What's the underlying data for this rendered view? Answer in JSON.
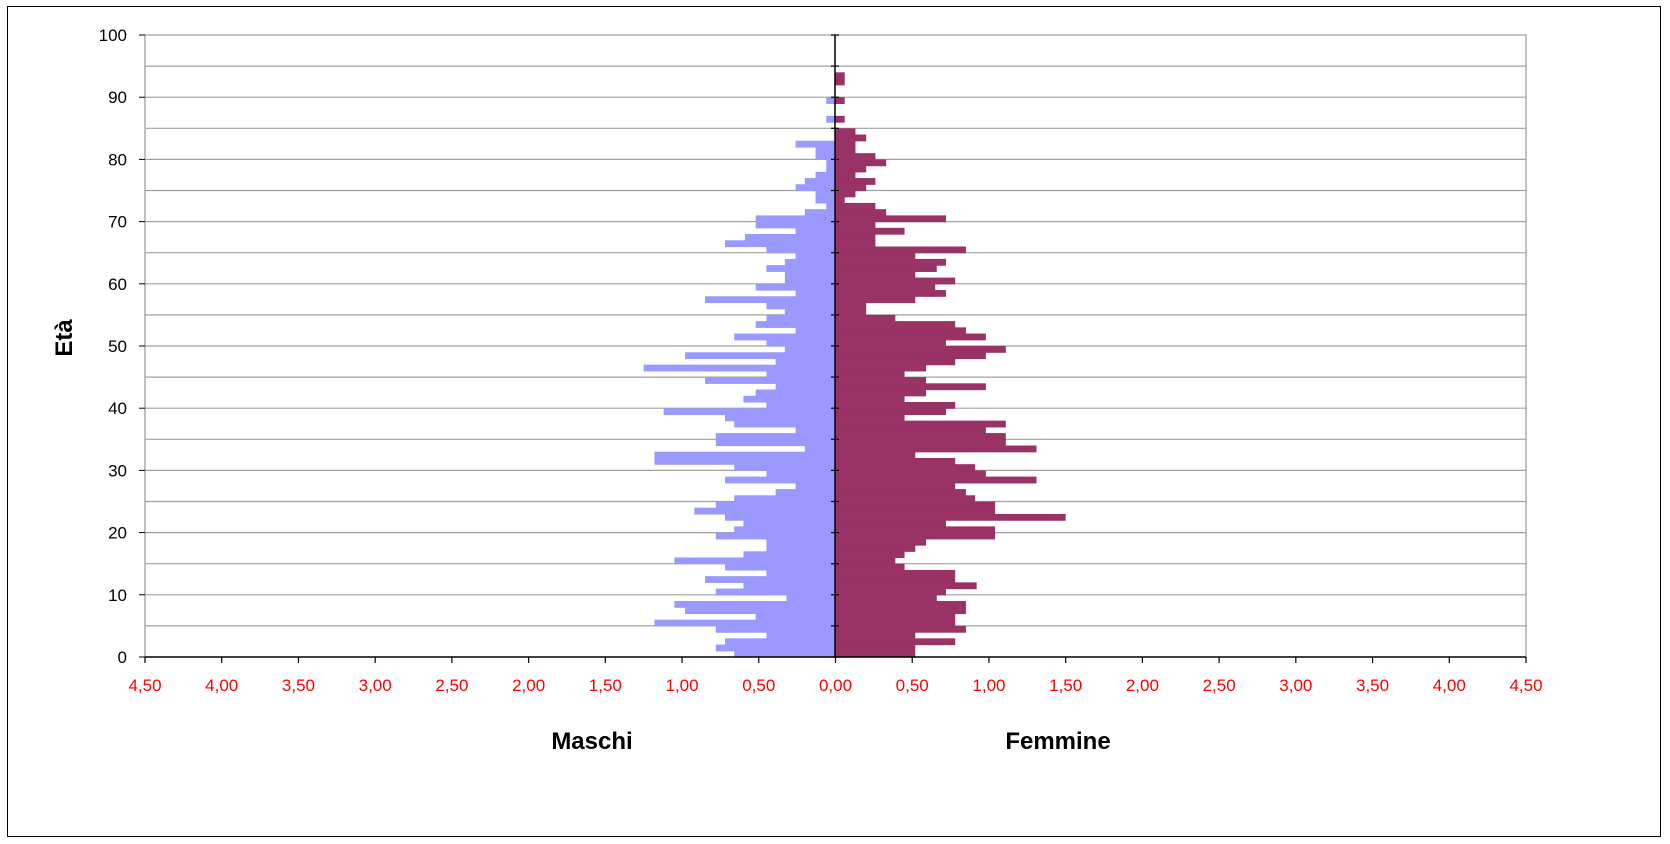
{
  "chart_data": {
    "type": "bar",
    "orientation": "horizontal",
    "subtype": "population-pyramid",
    "ylabel": "Età",
    "y_ticks": [
      "0",
      "10",
      "20",
      "30",
      "40",
      "50",
      "60",
      "70",
      "80",
      "90",
      "100"
    ],
    "ylim": [
      0,
      100
    ],
    "xlim": [
      -4.5,
      4.5
    ],
    "x_ticks": [
      "4,50",
      "4,00",
      "3,50",
      "3,00",
      "2,50",
      "2,00",
      "1,50",
      "1,00",
      "0,50",
      "0,00",
      "0,50",
      "1,00",
      "1,50",
      "2,00",
      "2,50",
      "3,00",
      "3,50",
      "4,00",
      "4,50"
    ],
    "grid": true,
    "ages": [
      0,
      1,
      2,
      3,
      4,
      5,
      6,
      7,
      8,
      9,
      10,
      11,
      12,
      13,
      14,
      15,
      16,
      17,
      18,
      19,
      20,
      21,
      22,
      23,
      24,
      25,
      26,
      27,
      28,
      29,
      30,
      31,
      32,
      33,
      34,
      35,
      36,
      37,
      38,
      39,
      40,
      41,
      42,
      43,
      44,
      45,
      46,
      47,
      48,
      49,
      50,
      51,
      52,
      53,
      54,
      55,
      56,
      57,
      58,
      59,
      60,
      61,
      62,
      63,
      64,
      65,
      66,
      67,
      68,
      69,
      70,
      71,
      72,
      73,
      74,
      75,
      76,
      77,
      78,
      79,
      80,
      81,
      82,
      83,
      84,
      85,
      86,
      87,
      88,
      89,
      90,
      91,
      92,
      93,
      94,
      95,
      96,
      97,
      98,
      99
    ],
    "series": [
      {
        "name": "Maschi",
        "color": "#9999ff",
        "values": [
          0.66,
          0.78,
          0.72,
          0.45,
          0.78,
          1.18,
          0.52,
          0.98,
          1.05,
          0.32,
          0.78,
          0.6,
          0.85,
          0.45,
          0.72,
          1.05,
          0.6,
          0.45,
          0.45,
          0.78,
          0.66,
          0.6,
          0.72,
          0.92,
          0.78,
          0.66,
          0.39,
          0.26,
          0.72,
          0.45,
          0.66,
          1.18,
          1.18,
          0.2,
          0.78,
          0.78,
          0.26,
          0.66,
          0.72,
          1.12,
          0.45,
          0.6,
          0.52,
          0.39,
          0.85,
          0.45,
          1.25,
          0.39,
          0.98,
          0.33,
          0.45,
          0.66,
          0.26,
          0.52,
          0.45,
          0.33,
          0.45,
          0.85,
          0.26,
          0.52,
          0.33,
          0.33,
          0.45,
          0.33,
          0.26,
          0.45,
          0.72,
          0.59,
          0.26,
          0.52,
          0.52,
          0.2,
          0.06,
          0.13,
          0.13,
          0.26,
          0.2,
          0.13,
          0.06,
          0.06,
          0.13,
          0.13,
          0.26,
          0.0,
          0.0,
          0.0,
          0.06,
          0.0,
          0.0,
          0.06,
          0.0,
          0.0,
          0.0,
          0.0,
          0.0,
          0.0,
          0.0,
          0.0,
          0.0,
          0.0
        ]
      },
      {
        "name": "Femmine",
        "color": "#993366",
        "values": [
          0.52,
          0.52,
          0.78,
          0.52,
          0.85,
          0.78,
          0.78,
          0.85,
          0.85,
          0.66,
          0.72,
          0.92,
          0.78,
          0.78,
          0.45,
          0.39,
          0.45,
          0.52,
          0.59,
          1.04,
          1.04,
          0.72,
          1.5,
          1.04,
          1.04,
          0.91,
          0.85,
          0.78,
          1.31,
          0.98,
          0.91,
          0.78,
          0.52,
          1.31,
          1.11,
          1.11,
          0.98,
          1.11,
          0.45,
          0.72,
          0.78,
          0.45,
          0.59,
          0.98,
          0.59,
          0.45,
          0.59,
          0.78,
          0.98,
          1.11,
          0.72,
          0.98,
          0.85,
          0.78,
          0.39,
          0.2,
          0.2,
          0.52,
          0.72,
          0.65,
          0.78,
          0.52,
          0.66,
          0.72,
          0.52,
          0.85,
          0.26,
          0.26,
          0.45,
          0.26,
          0.72,
          0.33,
          0.26,
          0.06,
          0.13,
          0.2,
          0.26,
          0.13,
          0.2,
          0.33,
          0.26,
          0.13,
          0.13,
          0.2,
          0.13,
          0.0,
          0.06,
          0.0,
          0.0,
          0.06,
          0.0,
          0.0,
          0.06,
          0.06,
          0.0,
          0.0,
          0.0,
          0.0,
          0.0,
          0.0
        ]
      }
    ]
  }
}
